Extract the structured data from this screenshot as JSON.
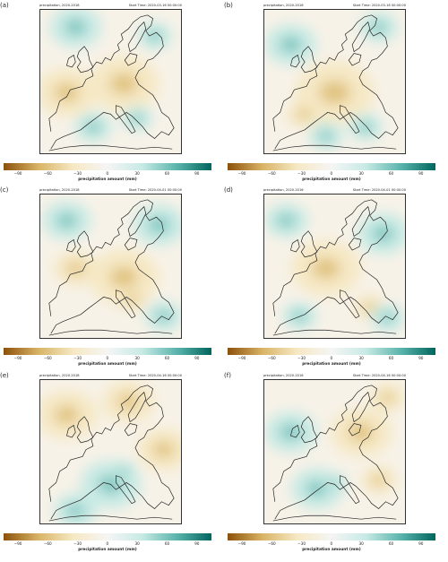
{
  "panels": [
    {
      "label": "(a)",
      "left_title": "precipitation, 2020-2018",
      "right_title": "Start Time: 2020-03-16 00:00:00"
    },
    {
      "label": "(b)",
      "left_title": "precipitation, 2020-2016",
      "right_title": "Start Time: 2020-03-16 00:00:00"
    },
    {
      "label": "(c)",
      "left_title": "precipitation, 2020-2018",
      "right_title": "Start Time: 2020-04-01 00:00:00"
    },
    {
      "label": "(d)",
      "left_title": "precipitation, 2020-2016",
      "right_title": "Start Time: 2020-04-01 00:00:00"
    },
    {
      "label": "(e)",
      "left_title": "precipitation, 2020-2018",
      "right_title": "Start Time: 2020-04-16 00:00:00"
    },
    {
      "label": "(f)",
      "left_title": "precipitation, 2020-2016",
      "right_title": "Start Time: 2020-04-16 00:00:00"
    }
  ],
  "colorbar": {
    "label": "precipitation amount (mm)",
    "ticks": [
      "−90",
      "−60",
      "−30",
      "0",
      "30",
      "60",
      "90"
    ],
    "colors": {
      "dry_end": "#8c510a",
      "dry_mid": "#d8b365",
      "dry_light": "#f6e8c3",
      "neutral": "#f5f5f5",
      "wet_light": "#c7eae5",
      "wet_mid": "#5ab4ac",
      "wet_end": "#01665e"
    }
  }
}
